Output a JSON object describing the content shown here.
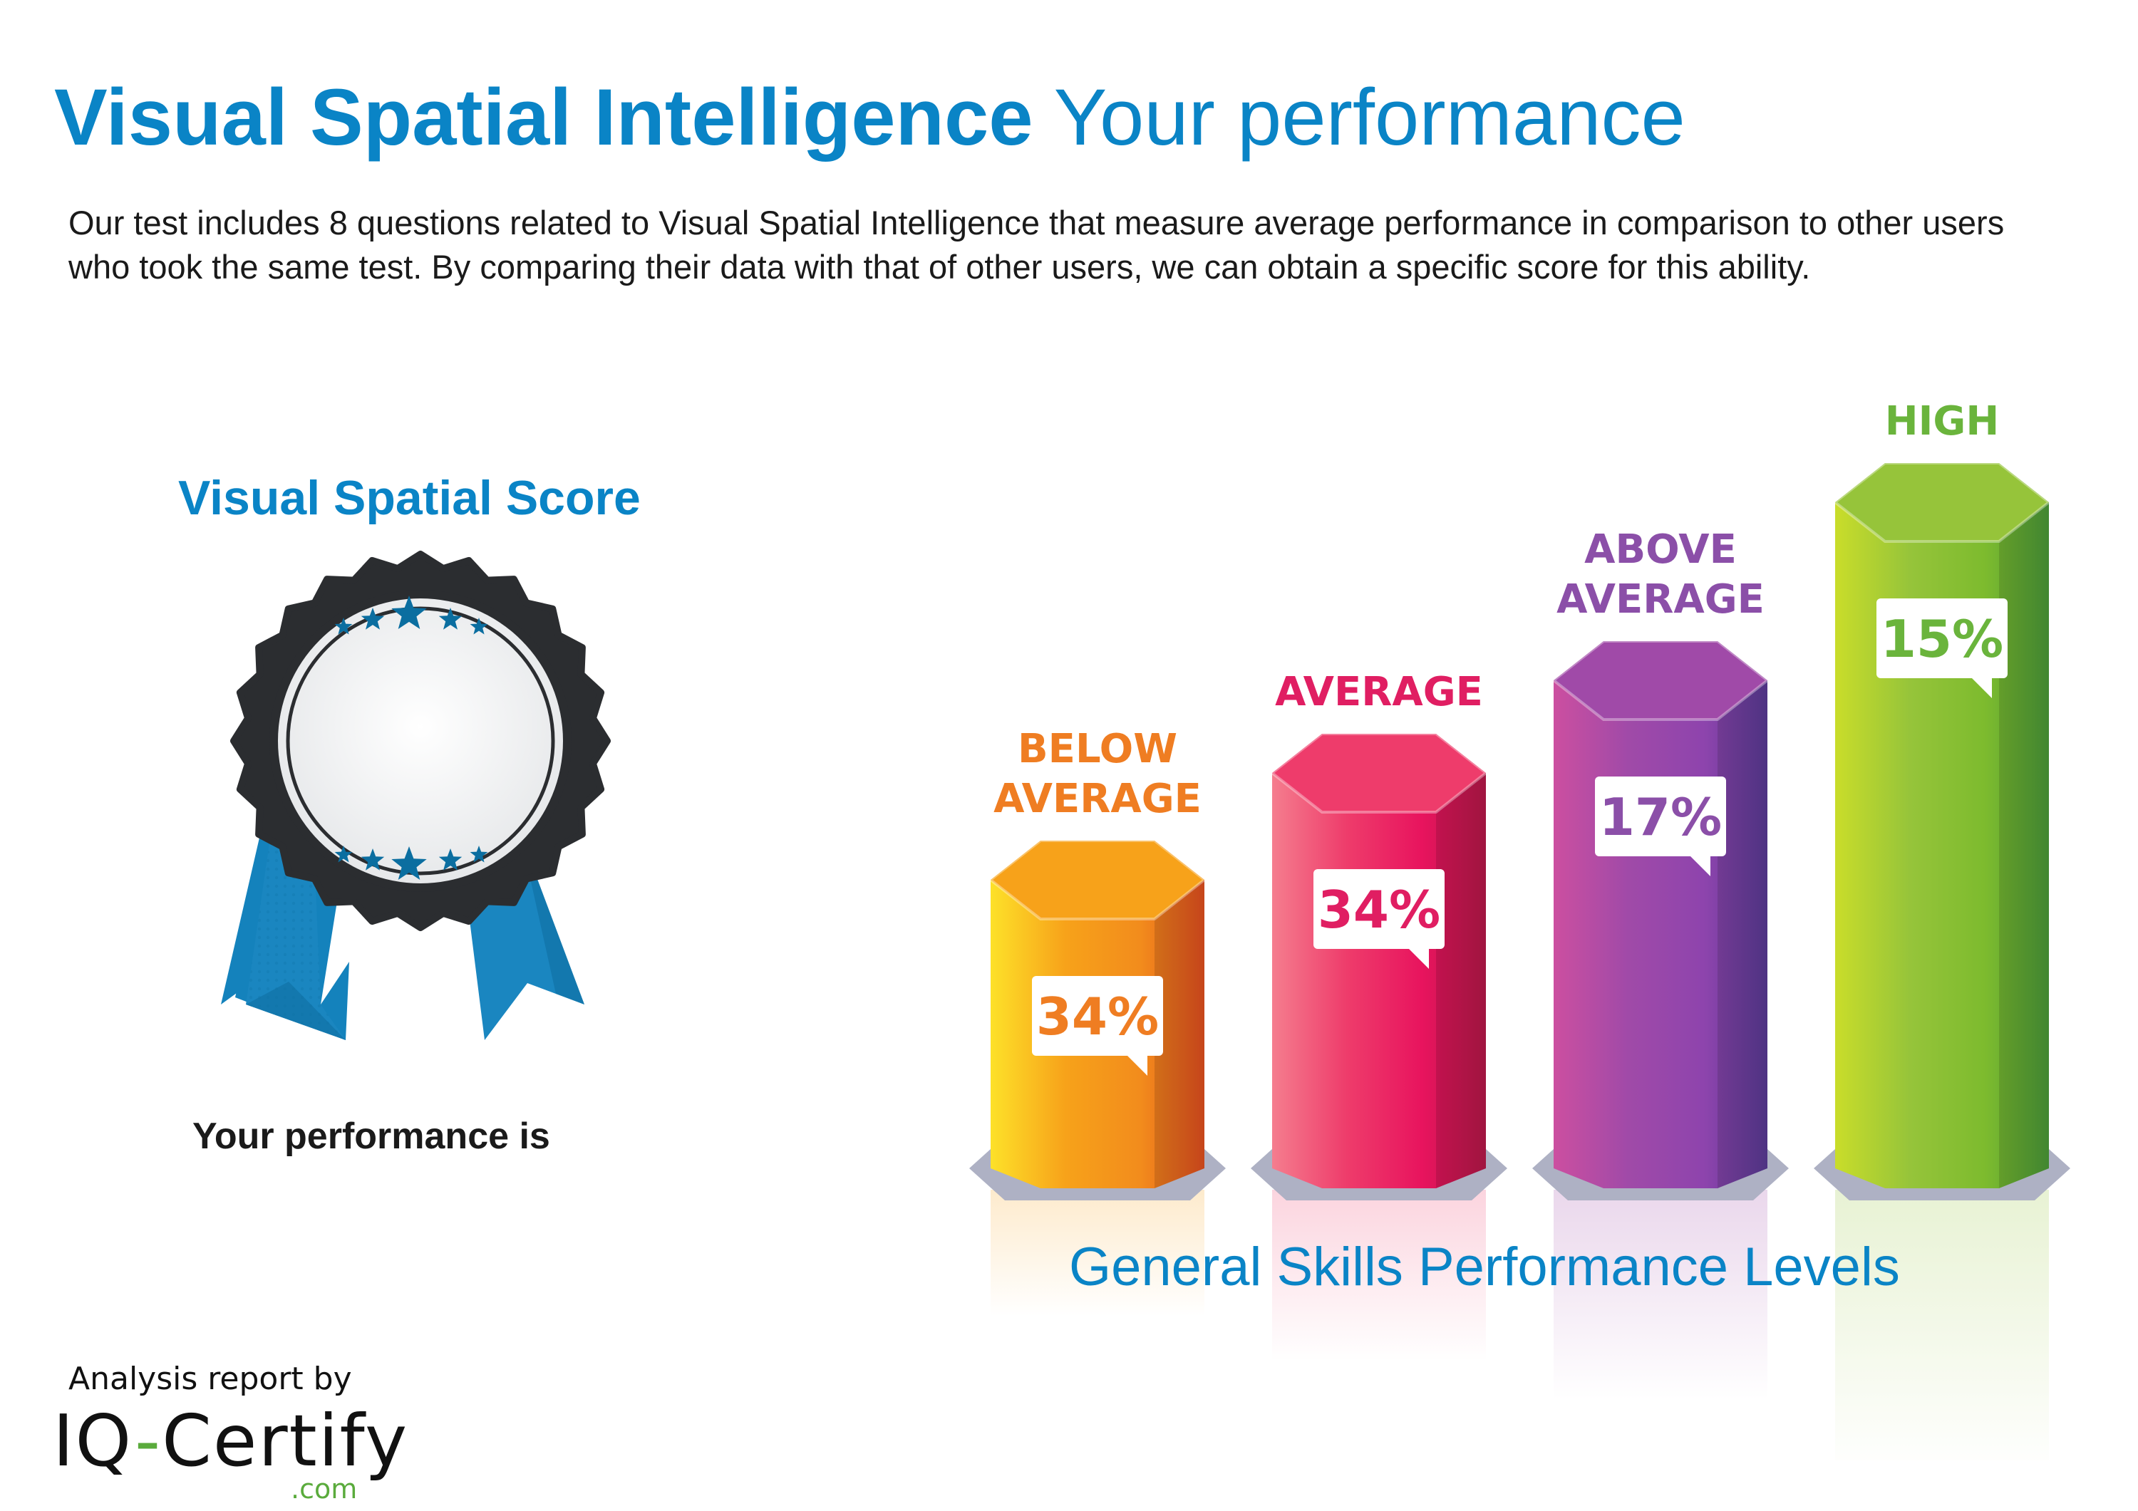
{
  "header": {
    "title_bold": "Visual Spatial Intelligence",
    "title_rest": "Your performance",
    "description": "Our test includes 8 questions related to Visual Spatial Intelligence that measure average performance in comparison to other users who took the same test. By comparing their data with that of other users, we can obtain a specific score for this ability."
  },
  "score": {
    "title": "Visual Spatial Score",
    "performance_label": "Your performance is"
  },
  "chart_data": {
    "type": "bar",
    "caption": "General Skills Performance Levels",
    "categories": [
      "BELOW AVERAGE",
      "AVERAGE",
      "ABOVE AVERAGE",
      "HIGH"
    ],
    "category_lines": [
      [
        "BELOW",
        "AVERAGE"
      ],
      [
        "AVERAGE"
      ],
      [
        "ABOVE",
        "AVERAGE"
      ],
      [
        "HIGH"
      ]
    ],
    "values": [
      34,
      34,
      17,
      15
    ],
    "value_labels": [
      "34%",
      "34%",
      "17%",
      "15%"
    ],
    "colors": [
      "#f28c1c",
      "#e8145e",
      "#8e44ad",
      "#7dbb2e"
    ],
    "label_colors": [
      "#ef7d22",
      "#e01e62",
      "#8b4fa8",
      "#6ab43c"
    ]
  },
  "footer": {
    "analysis_by": "Analysis report by",
    "logo_part1": "IQ",
    "logo_dash": "-",
    "logo_part2": "Certify",
    "logo_suffix": ".com"
  }
}
